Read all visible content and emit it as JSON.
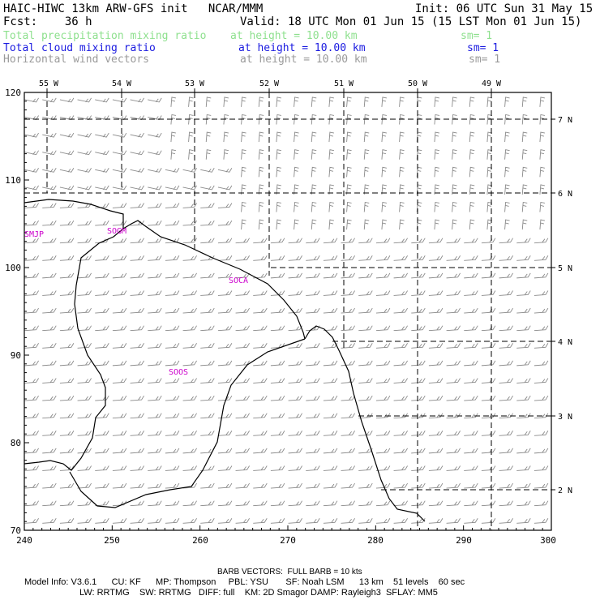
{
  "header": {
    "title": "HAIC-HIWC 13km ARW-GFS init   NCAR/MMM",
    "init": "Init: 06 UTC Sun 31 May 15",
    "fcst": "Fcst:    36 h",
    "valid": "Valid: 18 UTC Mon 01 Jun 15 (15 LST Mon 01 Jun 15)",
    "fields": [
      {
        "name": "Total precipitation mixing ratio",
        "height": "at height = 10.00 km",
        "sm": "sm= 1",
        "color": "#8ee08e"
      },
      {
        "name": "Total cloud mixing ratio",
        "height": "at height = 10.00 km",
        "sm": "sm= 1",
        "color": "#1a1ae0"
      },
      {
        "name": "Horizontal wind vectors",
        "height": "at height = 10.00 km",
        "sm": "sm= 1",
        "color": "#9a9a9a"
      }
    ]
  },
  "map": {
    "x_ticks": [
      "240",
      "250",
      "260",
      "270",
      "280",
      "290",
      "300"
    ],
    "y_ticks": [
      "70",
      "80",
      "90",
      "100",
      "110",
      "120"
    ],
    "lon_labels": [
      "55 W",
      "54 W",
      "53 W",
      "52 W",
      "51 W",
      "50 W",
      "49 W"
    ],
    "lat_labels": [
      "2 N",
      "3 N",
      "4 N",
      "5 N",
      "6 N",
      "7 N"
    ],
    "stations": [
      "SMJP",
      "SOGM",
      "SOCA",
      "SOOS"
    ],
    "station_color": "#cc00cc",
    "barb_color": "#8a8a8a"
  },
  "footer": {
    "barb_note": "BARB VECTORS:  FULL BARB = 10 kts",
    "model_line1": "Model Info: V3.6.1      CU: KF      MP: Thompson     PBL: YSU       SF: Noah LSM      13 km    51 levels    60 sec",
    "model_line2": "LW: RRTMG    SW: RRTMG   DIFF: full    KM: 2D Smagor DAMP: Rayleigh3  SFLAY: MM5"
  }
}
